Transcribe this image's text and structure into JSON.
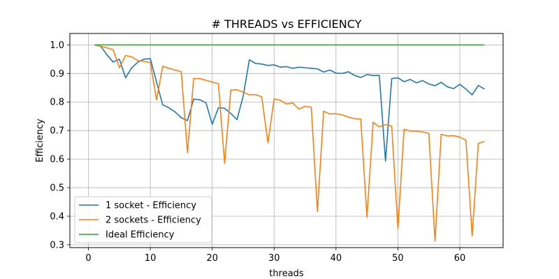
{
  "chart_data": {
    "type": "line",
    "title": "# THREADS vs EFFICIENCY",
    "xlabel": "threads",
    "ylabel": "Efficiency",
    "xlim": [
      -3,
      67
    ],
    "ylim": [
      0.29,
      1.04
    ],
    "xticks": [
      0,
      10,
      20,
      30,
      40,
      50,
      60
    ],
    "yticks": [
      0.3,
      0.4,
      0.5,
      0.6,
      0.7,
      0.8,
      0.9,
      1.0
    ],
    "grid": true,
    "legend_position": "lower-left",
    "x": [
      1,
      2,
      3,
      4,
      5,
      6,
      7,
      8,
      9,
      10,
      11,
      12,
      13,
      14,
      15,
      16,
      17,
      18,
      19,
      20,
      21,
      22,
      23,
      24,
      25,
      26,
      27,
      28,
      29,
      30,
      31,
      32,
      33,
      34,
      35,
      36,
      37,
      38,
      39,
      40,
      41,
      42,
      43,
      44,
      45,
      46,
      47,
      48,
      49,
      50,
      51,
      52,
      53,
      54,
      55,
      56,
      57,
      58,
      59,
      60,
      61,
      62,
      63,
      64
    ],
    "series": [
      {
        "name": "1 socket - Efficiency",
        "color": "#1f77b4",
        "values": [
          1.0,
          0.995,
          0.965,
          0.94,
          0.95,
          0.885,
          0.92,
          0.94,
          0.95,
          0.952,
          0.87,
          0.79,
          0.78,
          0.765,
          0.745,
          0.735,
          0.81,
          0.808,
          0.797,
          0.722,
          0.78,
          0.778,
          0.76,
          0.738,
          0.82,
          0.948,
          0.935,
          0.933,
          0.928,
          0.93,
          0.922,
          0.924,
          0.918,
          0.922,
          0.92,
          0.918,
          0.916,
          0.905,
          0.912,
          0.901,
          0.9,
          0.906,
          0.893,
          0.886,
          0.896,
          0.893,
          0.893,
          0.593,
          0.882,
          0.885,
          0.871,
          0.879,
          0.867,
          0.875,
          0.863,
          0.857,
          0.869,
          0.853,
          0.847,
          0.862,
          0.845,
          0.825,
          0.858,
          0.845
        ]
      },
      {
        "name": "2 sockets - Efficiency",
        "color": "#ff7f0e",
        "values": [
          1.0,
          0.995,
          0.99,
          0.983,
          0.92,
          0.963,
          0.958,
          0.945,
          0.942,
          0.938,
          0.807,
          0.925,
          0.918,
          0.912,
          0.906,
          0.622,
          0.882,
          0.882,
          0.876,
          0.87,
          0.864,
          0.585,
          0.842,
          0.843,
          0.834,
          0.825,
          0.826,
          0.818,
          0.657,
          0.811,
          0.806,
          0.793,
          0.797,
          0.775,
          0.785,
          0.782,
          0.416,
          0.768,
          0.758,
          0.759,
          0.755,
          0.747,
          0.742,
          0.74,
          0.396,
          0.729,
          0.713,
          0.721,
          0.716,
          0.357,
          0.705,
          0.698,
          0.698,
          0.695,
          0.69,
          0.313,
          0.687,
          0.681,
          0.682,
          0.677,
          0.666,
          0.331,
          0.655,
          0.662
        ]
      },
      {
        "name": "Ideal Efficiency",
        "color": "#2ca02c",
        "values": [
          1,
          1,
          1,
          1,
          1,
          1,
          1,
          1,
          1,
          1,
          1,
          1,
          1,
          1,
          1,
          1,
          1,
          1,
          1,
          1,
          1,
          1,
          1,
          1,
          1,
          1,
          1,
          1,
          1,
          1,
          1,
          1,
          1,
          1,
          1,
          1,
          1,
          1,
          1,
          1,
          1,
          1,
          1,
          1,
          1,
          1,
          1,
          1,
          1,
          1,
          1,
          1,
          1,
          1,
          1,
          1,
          1,
          1,
          1,
          1,
          1,
          1,
          1,
          1
        ]
      }
    ]
  }
}
